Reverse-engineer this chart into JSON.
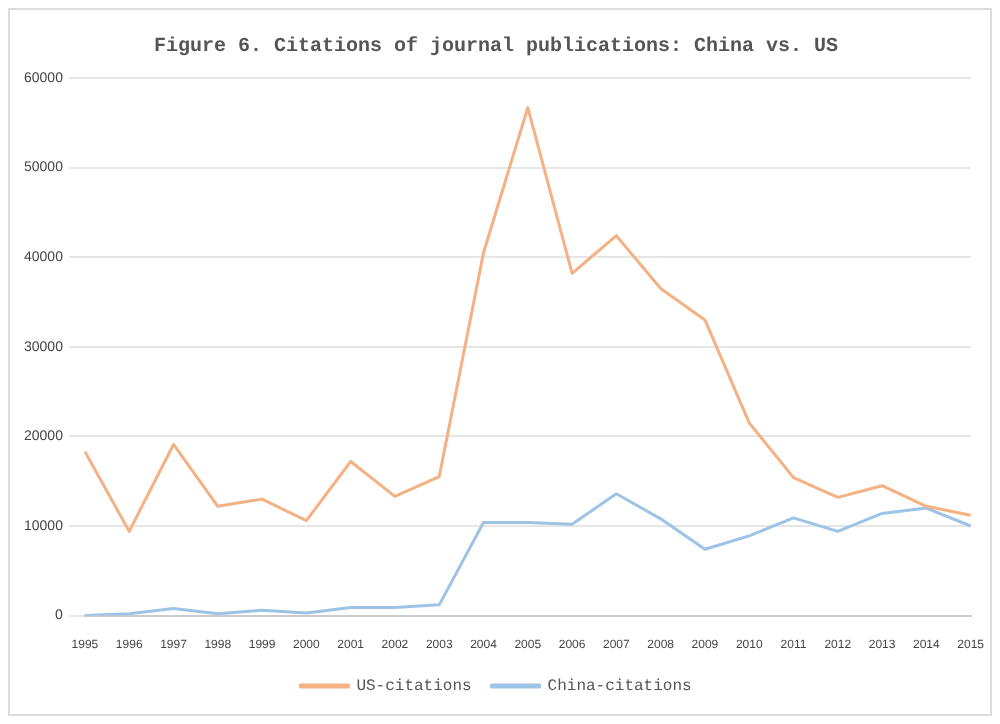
{
  "chart_data": {
    "type": "line",
    "title": "Figure 6. Citations of journal publications: China vs. US",
    "categories": [
      "1995",
      "1996",
      "1997",
      "1998",
      "1999",
      "2000",
      "2001",
      "2002",
      "2003",
      "2004",
      "2005",
      "2006",
      "2007",
      "2008",
      "2009",
      "2010",
      "2011",
      "2012",
      "2013",
      "2014",
      "2015"
    ],
    "series": [
      {
        "name": "US-citations",
        "color": "#f4b183",
        "values": [
          18300,
          9400,
          19100,
          12200,
          13000,
          10600,
          17200,
          13300,
          15500,
          40500,
          56700,
          38200,
          42400,
          36500,
          33000,
          21500,
          15400,
          13200,
          14500,
          12200,
          11200
        ]
      },
      {
        "name": "China-citations",
        "color": "#9dc3e6",
        "values": [
          0,
          200,
          800,
          200,
          600,
          300,
          900,
          900,
          1200,
          10400,
          10400,
          10200,
          13600,
          10800,
          7400,
          8900,
          10900,
          9400,
          11400,
          12000,
          10000
        ]
      }
    ],
    "ylim": [
      0,
      60000
    ],
    "yticks": [
      0,
      10000,
      20000,
      30000,
      40000,
      50000,
      60000
    ],
    "grid": "y",
    "legend": "bottom",
    "marker": "none",
    "line_style": "solid"
  }
}
